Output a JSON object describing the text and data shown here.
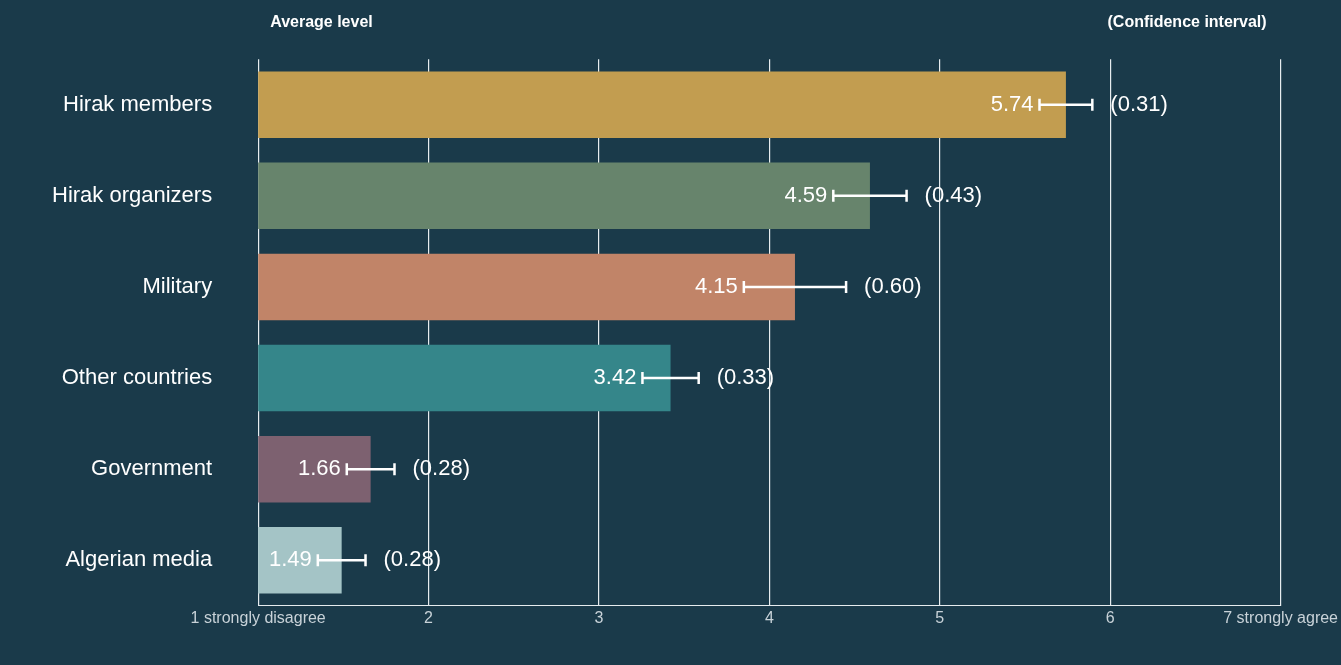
{
  "chart_data": {
    "type": "bar",
    "orientation": "horizontal",
    "categories": [
      "Hirak members",
      "Hirak organizers",
      "Military",
      "Other countries",
      "Government",
      "Algerian media"
    ],
    "values": [
      5.74,
      4.59,
      4.15,
      3.42,
      1.66,
      1.49
    ],
    "colors": [
      "#c29d50",
      "#67846c",
      "#c18468",
      "#35868a",
      "#7d6170",
      "#a4c4c6"
    ],
    "errors": [
      0.155,
      0.215,
      0.3,
      0.165,
      0.14,
      0.14
    ],
    "data_labels": true,
    "xlim": [
      1,
      7
    ],
    "xticks": [
      {
        "value": 1,
        "label": "1 strongly disagree"
      },
      2,
      3,
      4,
      5,
      6,
      {
        "value": 7,
        "label": "7 strongly agree"
      }
    ],
    "grid": "x",
    "annotations": [
      "Average level",
      "(Confidence interval)",
      {
        "text": "(0.31)",
        "x": 5.895,
        "y": "Hirak members"
      },
      {
        "text": "(0.43)",
        "x": 4.805,
        "y": "Hirak organizers"
      },
      {
        "text": "(0.60)",
        "x": 4.45,
        "y": "Military"
      },
      {
        "text": "(0.33)",
        "x": 3.585,
        "y": "Other countries"
      },
      {
        "text": "(0.28)",
        "x": 1.8,
        "y": "Government"
      },
      {
        "text": "(0.28)",
        "x": 1.63,
        "y": "Algerian media"
      }
    ]
  }
}
